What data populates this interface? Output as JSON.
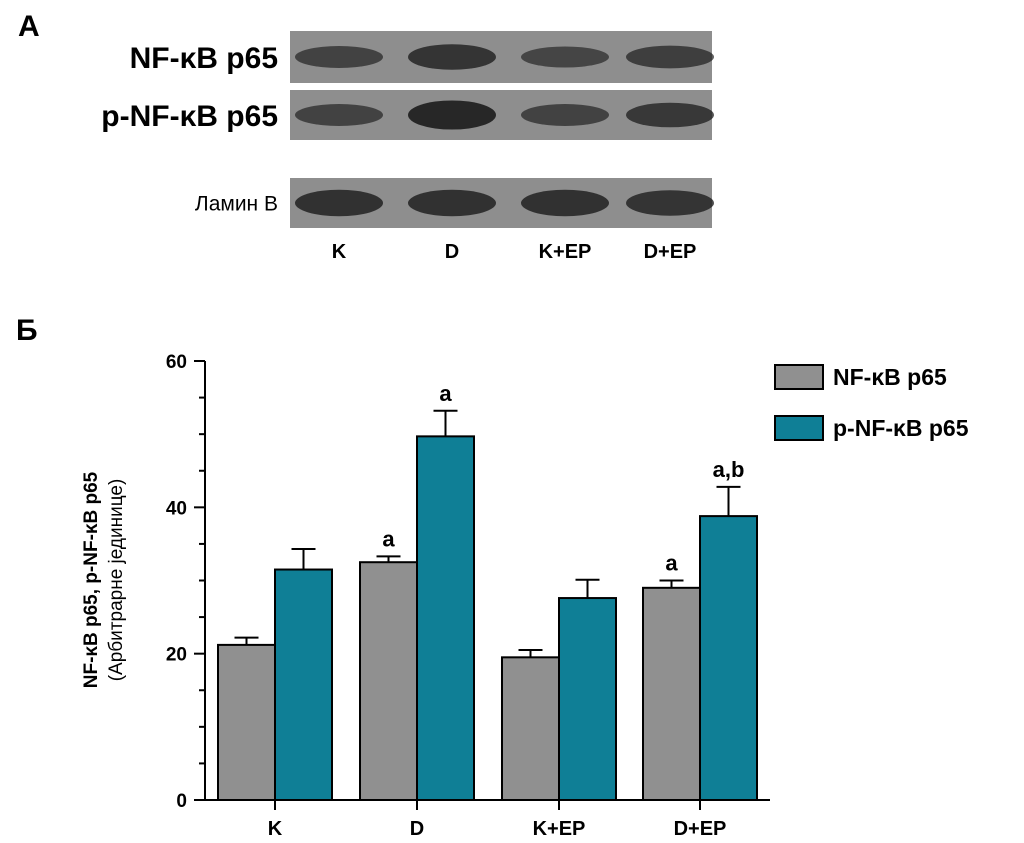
{
  "panel_a": {
    "label": "А",
    "blots": [
      {
        "name": "NF-κB p65",
        "intensities": [
          0.55,
          0.75,
          0.5,
          0.6
        ]
      },
      {
        "name": "p-NF-κB p65",
        "intensities": [
          0.55,
          0.95,
          0.55,
          0.7
        ]
      },
      {
        "name": "Ламин В",
        "intensities": [
          0.8,
          0.8,
          0.8,
          0.75
        ]
      }
    ],
    "lanes": [
      "K",
      "D",
      "K+EP",
      "D+EP"
    ],
    "colors": {
      "membrane": "#8e8e8e",
      "band": "#1e1e1e"
    }
  },
  "panel_b": {
    "label": "Б"
  },
  "chart_data": {
    "type": "bar",
    "categories": [
      "K",
      "D",
      "K+EP",
      "D+EP"
    ],
    "series": [
      {
        "name": "NF-κB p65",
        "values": [
          21.2,
          32.5,
          19.5,
          29.0
        ],
        "errors": [
          1.0,
          0.8,
          1.0,
          1.0
        ],
        "color": "#909090"
      },
      {
        "name": "p-NF-κB p65",
        "values": [
          31.5,
          49.7,
          27.6,
          38.8
        ],
        "errors": [
          2.8,
          3.5,
          2.5,
          4.0
        ],
        "color": "#0f7f96"
      }
    ],
    "annotations": [
      {
        "category": "D",
        "series": 0,
        "text": "a"
      },
      {
        "category": "D",
        "series": 1,
        "text": "a"
      },
      {
        "category": "D+EP",
        "series": 0,
        "text": "a"
      },
      {
        "category": "D+EP",
        "series": 1,
        "text": "a,b"
      }
    ],
    "ylabel_line1": "NF-κB p65, p-NF-κB p65",
    "ylabel_line2": "(Арбитрарне јединице)",
    "xlabel": "",
    "ylim": [
      0,
      60
    ],
    "yticks": [
      0,
      20,
      40,
      60
    ],
    "legend_position": "top-right"
  }
}
